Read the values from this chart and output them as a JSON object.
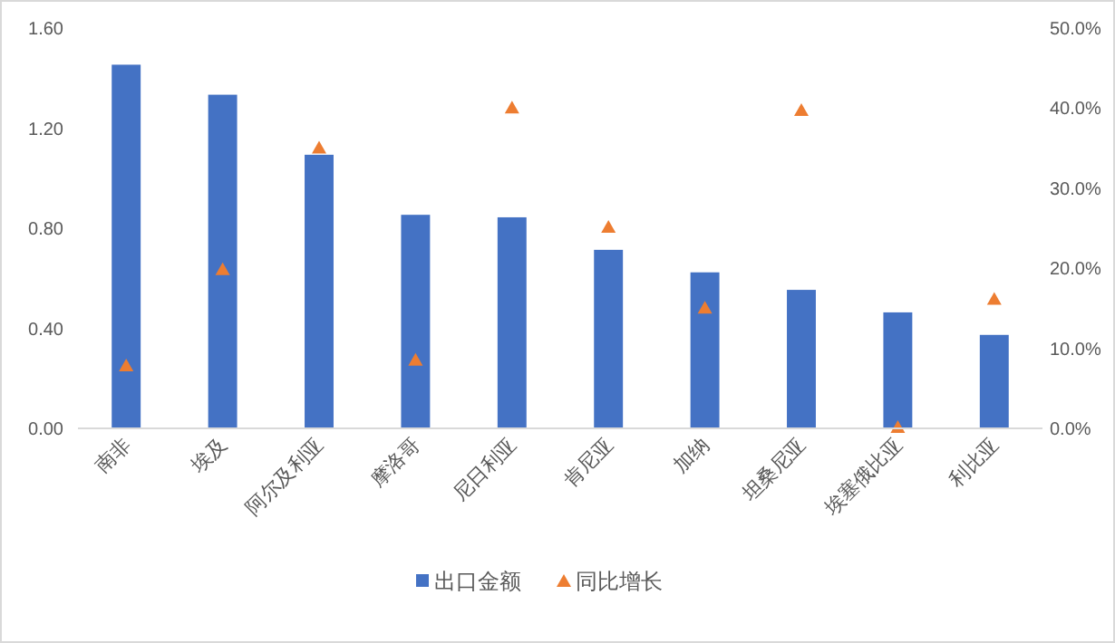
{
  "chart_data": {
    "type": "bar",
    "categories": [
      "南非",
      "埃及",
      "阿尔及利亚",
      "摩洛哥",
      "尼日利亚",
      "肯尼亚",
      "加纳",
      "坦桑尼亚",
      "埃塞俄比亚",
      "利比亚"
    ],
    "series": [
      {
        "name": "出口金额",
        "color": "#4472c4",
        "values": [
          1.45,
          1.33,
          1.09,
          0.85,
          0.84,
          0.71,
          0.62,
          0.55,
          0.46,
          0.37
        ]
      },
      {
        "name": "同比增长",
        "type": "scatter",
        "axis": "y2",
        "marker": "triangle",
        "color": "#ed7d31",
        "values": [
          7.7,
          19.7,
          34.9,
          8.4,
          39.9,
          25.0,
          14.9,
          39.6,
          0.0,
          16.0
        ]
      }
    ],
    "ylim": [
      0,
      1.6
    ],
    "yticks": [
      {
        "value": 0,
        "label": "0.00"
      },
      {
        "value": 0.4,
        "label": "0.40"
      },
      {
        "value": 0.8,
        "label": "0.80"
      },
      {
        "value": 1.2,
        "label": "1.20"
      },
      {
        "value": 1.6,
        "label": "1.60"
      }
    ],
    "y2lim": [
      0,
      50
    ],
    "y2ticks": [
      {
        "value": 0,
        "label": "0.0%"
      },
      {
        "value": 10,
        "label": "10.0%"
      },
      {
        "value": 20,
        "label": "20.0%"
      },
      {
        "value": 30,
        "label": "30.0%"
      },
      {
        "value": 40,
        "label": "40.0%"
      },
      {
        "value": 50,
        "label": "50.0%"
      }
    ],
    "grid": false,
    "legend": "bottom"
  }
}
